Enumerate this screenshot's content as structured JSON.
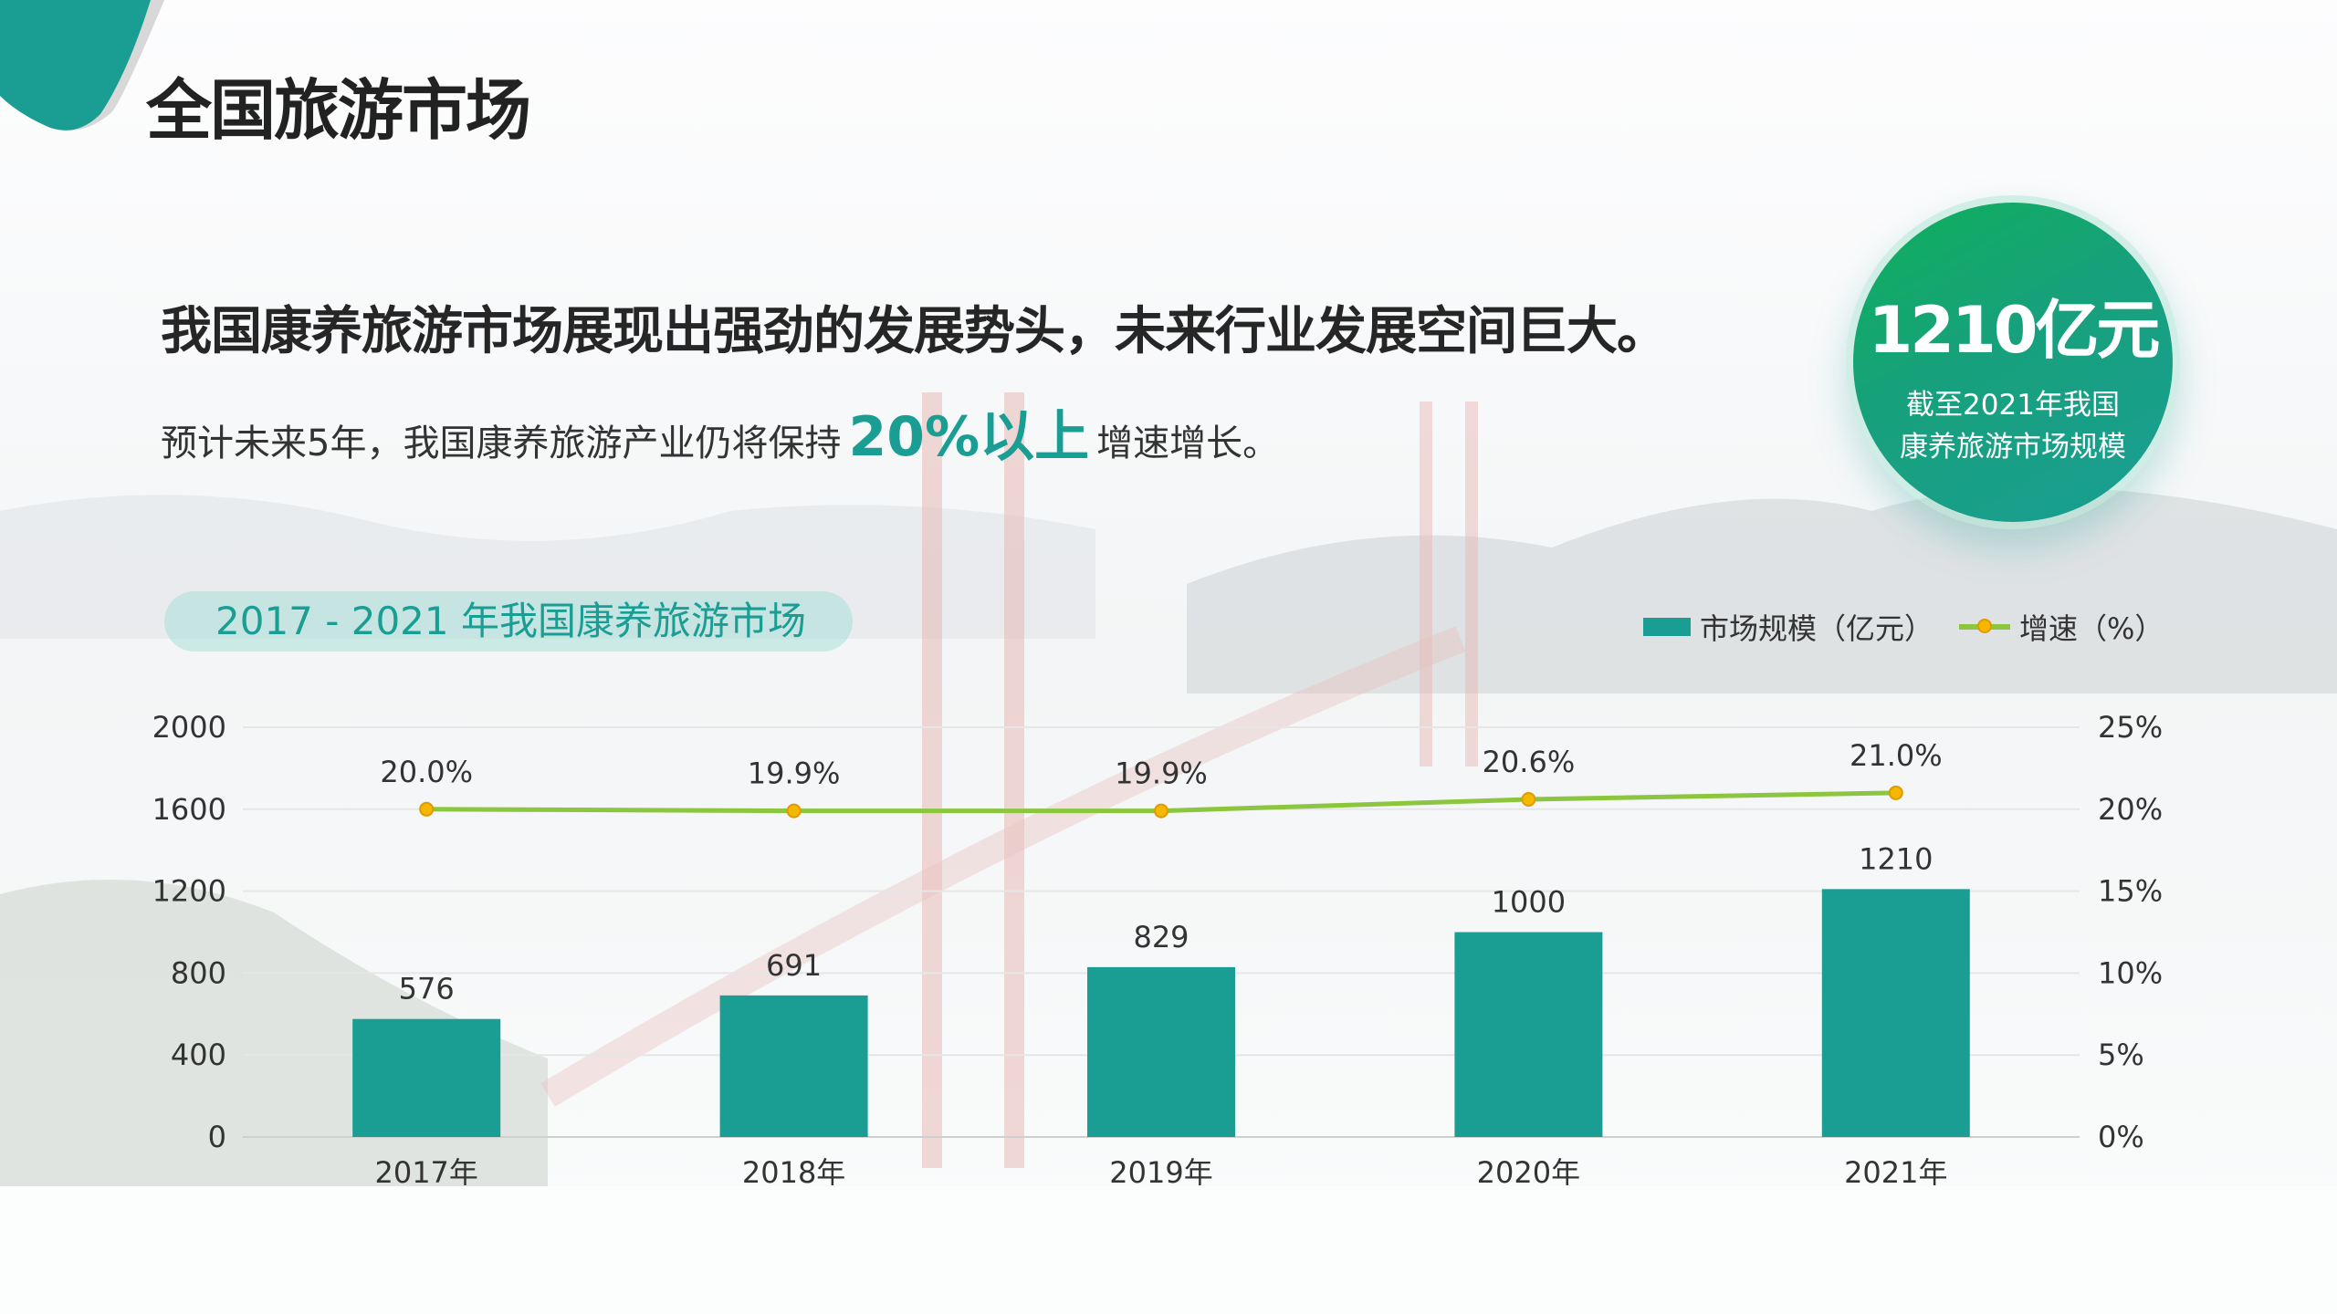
{
  "header": {
    "title": "全国旅游市场"
  },
  "headline": "我国康养旅游市场展现出强劲的发展势头，未来行业发展空间巨大。",
  "subline": {
    "before": "预计未来5年，我国康养旅游产业仍将保持",
    "highlight": "20%以上",
    "after": "增速增长。"
  },
  "badge": {
    "value": "1210亿元",
    "line1": "截至2021年我国",
    "line2": "康养旅游市场规模"
  },
  "colors": {
    "accent": "#1a9e94",
    "line": "#8cc63f",
    "marker": "#f5b800"
  },
  "chart_data": {
    "type": "bar+line",
    "title": "2017 - 2021 年我国康养旅游市场",
    "categories": [
      "2017年",
      "2018年",
      "2019年",
      "2020年",
      "2021年"
    ],
    "series": [
      {
        "name": "市场规模（亿元）",
        "type": "bar",
        "axis": "left",
        "values": [
          576,
          691,
          829,
          1000,
          1210
        ],
        "labels": [
          "576",
          "691",
          "829",
          "1000",
          "1210"
        ]
      },
      {
        "name": "增速（%）",
        "type": "line",
        "axis": "right",
        "values": [
          20.0,
          19.9,
          19.9,
          20.6,
          21.0
        ],
        "labels": [
          "20.0%",
          "19.9%",
          "19.9%",
          "20.6%",
          "21.0%"
        ]
      }
    ],
    "y_left": {
      "range": [
        0,
        2000
      ],
      "ticks": [
        "0",
        "400",
        "800",
        "1200",
        "1600",
        "2000"
      ]
    },
    "y_right": {
      "range": [
        0,
        25
      ],
      "ticks": [
        "0%",
        "5%",
        "10%",
        "15%",
        "20%",
        "25%"
      ]
    },
    "grid": true,
    "legend": "top-right"
  }
}
